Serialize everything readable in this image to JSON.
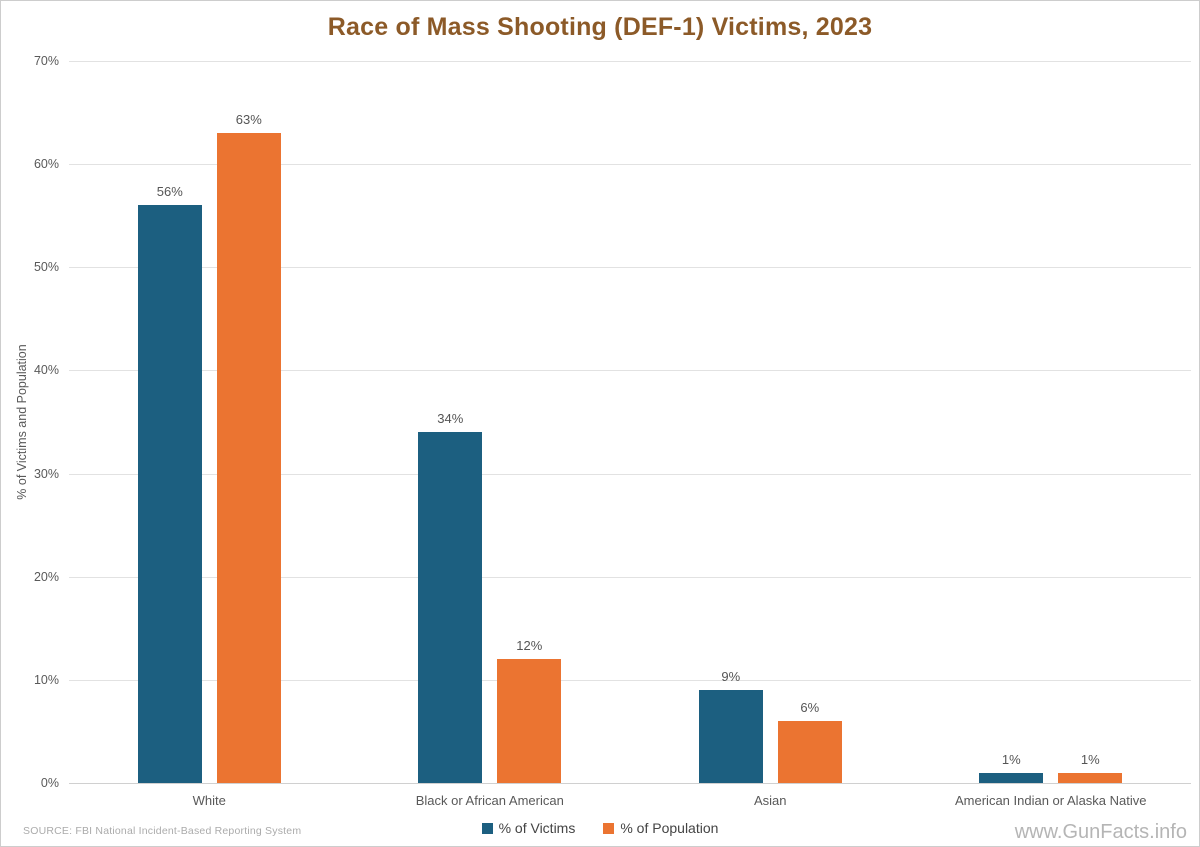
{
  "title": "Race of Mass Shooting (DEF-1) Victims, 2023",
  "title_color": "#8C5A28",
  "source": "SOURCE: FBI National Incident-Based Reporting System",
  "watermark": "www.GunFacts.info",
  "chart_data": {
    "type": "bar",
    "title": "Race of Mass Shooting (DEF-1) Victims, 2023",
    "categories": [
      "White",
      "Black or African American",
      "Asian",
      "American Indian or Alaska Native"
    ],
    "series": [
      {
        "name": "% of Victims",
        "color": "#1C5F80",
        "values": [
          56,
          34,
          9,
          1
        ],
        "labels": [
          "56%",
          "34%",
          "9%",
          "1%"
        ]
      },
      {
        "name": "% of Population",
        "color": "#EB7431",
        "values": [
          63,
          12,
          6,
          1
        ],
        "labels": [
          "63%",
          "12%",
          "6%",
          "1%"
        ]
      }
    ],
    "xlabel": "",
    "ylabel": "% of Victims and Population",
    "ylim": [
      0,
      70
    ],
    "ytick_step": 10,
    "ytick_labels": [
      "0%",
      "10%",
      "20%",
      "30%",
      "40%",
      "50%",
      "60%",
      "70%"
    ],
    "grid": true,
    "legend_position": "bottom"
  }
}
